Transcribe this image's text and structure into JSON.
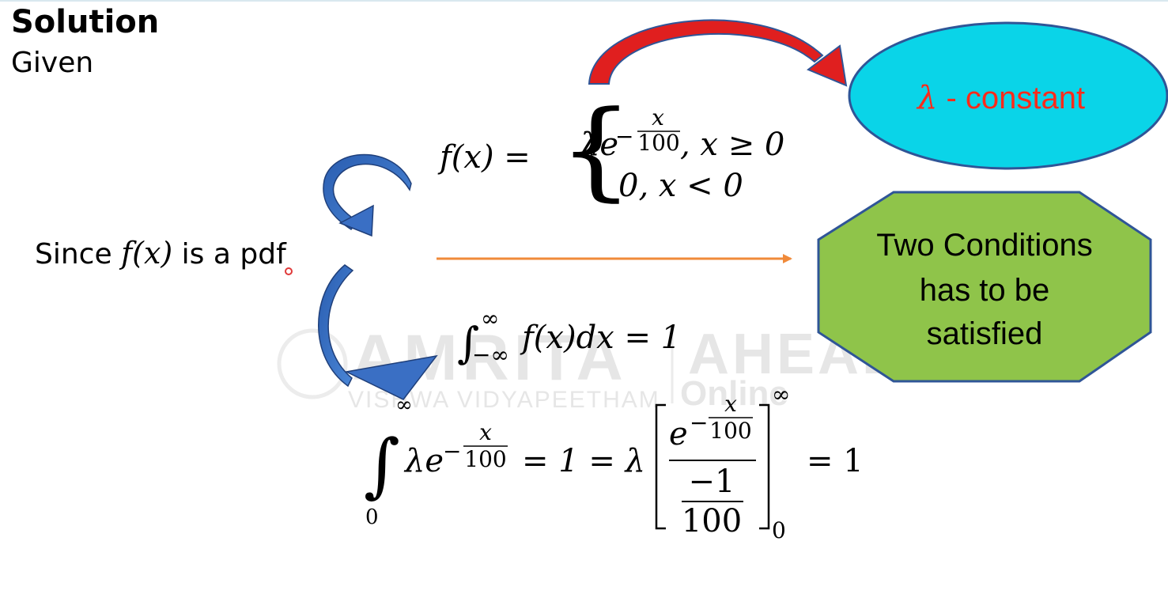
{
  "slide": {
    "heading": "Solution",
    "subheading": "Given",
    "since_prefix": "Since ",
    "since_math": "f(x)",
    "since_suffix": "  is a pdf"
  },
  "pdf_definition": {
    "lhs": "f(x) =",
    "case1_coef": "λe",
    "case1_exp_sign": "−",
    "case1_exp_num": "x",
    "case1_exp_den": "100",
    "case1_cond": ", x ≥ 0",
    "case2": "0, x < 0"
  },
  "lambda_callout": {
    "symbol": "λ",
    "text": " - constant",
    "fill": "#0ad4e8",
    "text_color": "#ff2a1a"
  },
  "conditions_callout": {
    "line1": "Two Conditions",
    "line2": "has to be",
    "line3": "satisfied",
    "fill": "#8fc44a"
  },
  "integral_condition": {
    "upper": "∞",
    "lower": "−∞",
    "integrand": "f(x)dx = 1"
  },
  "integral_solution": {
    "upper": "∞",
    "lower": "0",
    "integrand_coef": "λe",
    "exp_sign": "−",
    "exp_num": "x",
    "exp_den": "100",
    "middle": "= 1 = λ",
    "frac_num_base": "e",
    "frac_num_exp_sign": "−",
    "frac_num_exp_num": "x",
    "frac_num_exp_den": "100",
    "frac_den_num": "−1",
    "frac_den_den": "100",
    "bracket_upper": "∞",
    "bracket_lower": "0",
    "rhs": "= 1"
  },
  "watermark": {
    "brand": "AMRITA",
    "brand2": "AHEAD",
    "sub": "VISHWA VIDYAPEETHAM",
    "online": "Online"
  },
  "colors": {
    "red_arrow": "#e01f1f",
    "blue_arrow": "#3a6fc4",
    "orange_arrow": "#f08a3a",
    "outline": "#2f5597"
  }
}
